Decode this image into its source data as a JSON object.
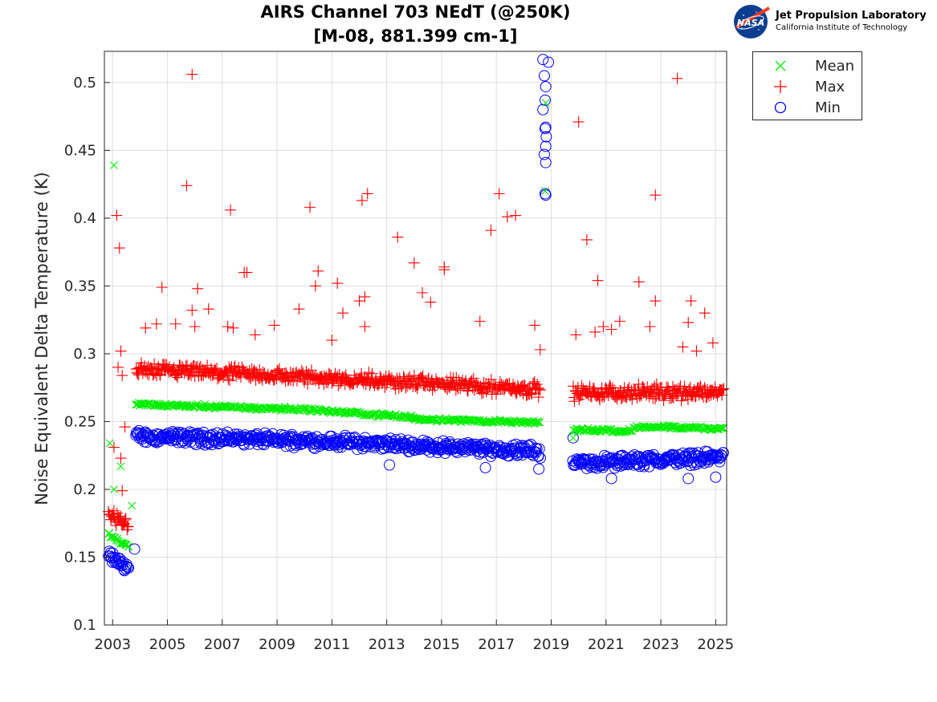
{
  "chart_data": {
    "type": "scatter",
    "title": [
      "AIRS Channel 703 NEdT (@250K)",
      "[M-08, 881.399 cm-1]"
    ],
    "xlabel": "",
    "ylabel": "Noise Equivalent Delta Temperature (K)",
    "xlim": [
      2002.7,
      2025.4
    ],
    "ylim": [
      0.1,
      0.523
    ],
    "xticks": [
      2003,
      2005,
      2007,
      2009,
      2011,
      2013,
      2015,
      2017,
      2019,
      2021,
      2023,
      2025
    ],
    "yticks": [
      0.1,
      0.15,
      0.2,
      0.25,
      0.3,
      0.35,
      0.4,
      0.45,
      0.5
    ],
    "ytick_labels": [
      "0.1",
      "0.15",
      "0.2",
      "0.25",
      "0.3",
      "0.35",
      "0.4",
      "0.45",
      "0.5"
    ],
    "grid": true,
    "legend_position": "outside-top-right",
    "series": [
      {
        "name": "Mean",
        "marker": "x",
        "color": "#00ee00",
        "segments": [
          {
            "x0": 2002.85,
            "x1": 2003.6,
            "y0": 0.167,
            "y1": 0.157
          },
          {
            "x0": 2003.85,
            "x1": 2005,
            "y0": 0.263,
            "y1": 0.262
          },
          {
            "x0": 2005,
            "x1": 2010,
            "y0": 0.262,
            "y1": 0.259
          },
          {
            "x0": 2010,
            "x1": 2014,
            "y0": 0.259,
            "y1": 0.253
          },
          {
            "x0": 2014,
            "x1": 2018.6,
            "y0": 0.252,
            "y1": 0.249
          },
          {
            "x0": 2019.8,
            "x1": 2022,
            "y0": 0.244,
            "y1": 0.243
          },
          {
            "x0": 2022,
            "x1": 2025.3,
            "y0": 0.246,
            "y1": 0.245
          }
        ],
        "outliers": [
          [
            2003.05,
            0.439
          ],
          [
            2002.9,
            0.234
          ],
          [
            2003.05,
            0.2
          ],
          [
            2003.3,
            0.217
          ],
          [
            2003.7,
            0.188
          ],
          [
            2018.78,
            0.42
          ],
          [
            2018.8,
            0.485
          ],
          [
            2019.8,
            0.238
          ]
        ]
      },
      {
        "name": "Max",
        "marker": "+",
        "color": "#ff0000",
        "segments": [
          {
            "x0": 2002.85,
            "x1": 2003.6,
            "y0": 0.183,
            "y1": 0.172
          },
          {
            "x0": 2003.85,
            "x1": 2010,
            "y0": 0.288,
            "y1": 0.283
          },
          {
            "x0": 2010,
            "x1": 2018.6,
            "y0": 0.283,
            "y1": 0.274
          },
          {
            "x0": 2019.8,
            "x1": 2025.3,
            "y0": 0.271,
            "y1": 0.272
          }
        ],
        "outliers": [
          [
            2003.15,
            0.402
          ],
          [
            2003.25,
            0.378
          ],
          [
            2003.2,
            0.29
          ],
          [
            2003.3,
            0.302
          ],
          [
            2003.35,
            0.284
          ],
          [
            2003.45,
            0.246
          ],
          [
            2003.05,
            0.231
          ],
          [
            2003.3,
            0.223
          ],
          [
            2003.35,
            0.199
          ],
          [
            2004.8,
            0.349
          ],
          [
            2004.6,
            0.322
          ],
          [
            2004.2,
            0.319
          ],
          [
            2005.3,
            0.322
          ],
          [
            2005.7,
            0.424
          ],
          [
            2005.9,
            0.506
          ],
          [
            2005.9,
            0.332
          ],
          [
            2006.1,
            0.348
          ],
          [
            2006.0,
            0.32
          ],
          [
            2006.5,
            0.333
          ],
          [
            2007.3,
            0.406
          ],
          [
            2007.2,
            0.32
          ],
          [
            2007.4,
            0.319
          ],
          [
            2007.8,
            0.36
          ],
          [
            2007.9,
            0.36
          ],
          [
            2008.2,
            0.314
          ],
          [
            2008.9,
            0.321
          ],
          [
            2009.8,
            0.333
          ],
          [
            2010.2,
            0.408
          ],
          [
            2010.4,
            0.35
          ],
          [
            2010.5,
            0.361
          ],
          [
            2011.2,
            0.352
          ],
          [
            2011.4,
            0.33
          ],
          [
            2011.0,
            0.31
          ],
          [
            2012.1,
            0.413
          ],
          [
            2012.3,
            0.418
          ],
          [
            2012.2,
            0.342
          ],
          [
            2012.0,
            0.339
          ],
          [
            2012.2,
            0.32
          ],
          [
            2013.4,
            0.386
          ],
          [
            2014.0,
            0.367
          ],
          [
            2014.3,
            0.345
          ],
          [
            2014.6,
            0.338
          ],
          [
            2015.1,
            0.364
          ],
          [
            2015.1,
            0.362
          ],
          [
            2016.4,
            0.324
          ],
          [
            2016.8,
            0.391
          ],
          [
            2017.1,
            0.418
          ],
          [
            2017.4,
            0.401
          ],
          [
            2017.7,
            0.402
          ],
          [
            2018.4,
            0.321
          ],
          [
            2018.6,
            0.303
          ],
          [
            2019.9,
            0.314
          ],
          [
            2020.0,
            0.471
          ],
          [
            2020.3,
            0.384
          ],
          [
            2020.7,
            0.354
          ],
          [
            2020.6,
            0.316
          ],
          [
            2020.9,
            0.32
          ],
          [
            2021.2,
            0.318
          ],
          [
            2021.5,
            0.324
          ],
          [
            2022.2,
            0.353
          ],
          [
            2022.8,
            0.417
          ],
          [
            2022.8,
            0.339
          ],
          [
            2022.6,
            0.32
          ],
          [
            2023.6,
            0.503
          ],
          [
            2023.8,
            0.305
          ],
          [
            2024.0,
            0.323
          ],
          [
            2024.1,
            0.339
          ],
          [
            2024.3,
            0.302
          ],
          [
            2024.6,
            0.33
          ],
          [
            2024.9,
            0.308
          ]
        ]
      },
      {
        "name": "Min",
        "marker": "o",
        "color": "#0000ff",
        "segments": [
          {
            "x0": 2002.85,
            "x1": 2003.6,
            "y0": 0.151,
            "y1": 0.142
          },
          {
            "x0": 2003.85,
            "x1": 2010,
            "y0": 0.239,
            "y1": 0.236
          },
          {
            "x0": 2010,
            "x1": 2018.6,
            "y0": 0.236,
            "y1": 0.228
          },
          {
            "x0": 2019.8,
            "x1": 2025.3,
            "y0": 0.219,
            "y1": 0.224
          }
        ],
        "outliers": [
          [
            2003.8,
            0.156
          ],
          [
            2018.7,
            0.517
          ],
          [
            2018.9,
            0.515
          ],
          [
            2018.75,
            0.505
          ],
          [
            2018.8,
            0.497
          ],
          [
            2018.78,
            0.487
          ],
          [
            2018.8,
            0.467
          ],
          [
            2018.78,
            0.466
          ],
          [
            2018.8,
            0.453
          ],
          [
            2018.75,
            0.447
          ],
          [
            2018.8,
            0.441
          ],
          [
            2018.78,
            0.418
          ],
          [
            2018.8,
            0.417
          ],
          [
            2018.7,
            0.48
          ],
          [
            2018.82,
            0.46
          ],
          [
            2019.8,
            0.238
          ],
          [
            2018.55,
            0.215
          ],
          [
            2021.2,
            0.208
          ],
          [
            2024.0,
            0.208
          ],
          [
            2025.0,
            0.209
          ],
          [
            2013.1,
            0.218
          ],
          [
            2016.6,
            0.216
          ]
        ]
      }
    ]
  },
  "legend": [
    {
      "label": "Mean",
      "marker": "x",
      "color": "#00ee00"
    },
    {
      "label": "Max",
      "marker": "+",
      "color": "#ff0000"
    },
    {
      "label": "Min",
      "marker": "o",
      "color": "#0000ff"
    }
  ],
  "logo": {
    "agency": "NASA",
    "lab_name": "Jet Propulsion Laboratory",
    "institution": "California Institute of Technology"
  }
}
